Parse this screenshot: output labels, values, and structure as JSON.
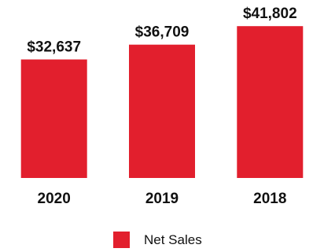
{
  "chart_data": {
    "type": "bar",
    "categories": [
      "2020",
      "2019",
      "2018"
    ],
    "series": [
      {
        "name": "Net Sales",
        "values": [
          32637,
          36709,
          41802
        ],
        "labels": [
          "$32,637",
          "$36,709",
          "$41,802"
        ],
        "color": "#e21f2d"
      }
    ],
    "title": "",
    "xlabel": "",
    "ylabel": "",
    "ylim": [
      0,
      49000
    ],
    "grid": false,
    "legend_position": "bottom-center"
  }
}
